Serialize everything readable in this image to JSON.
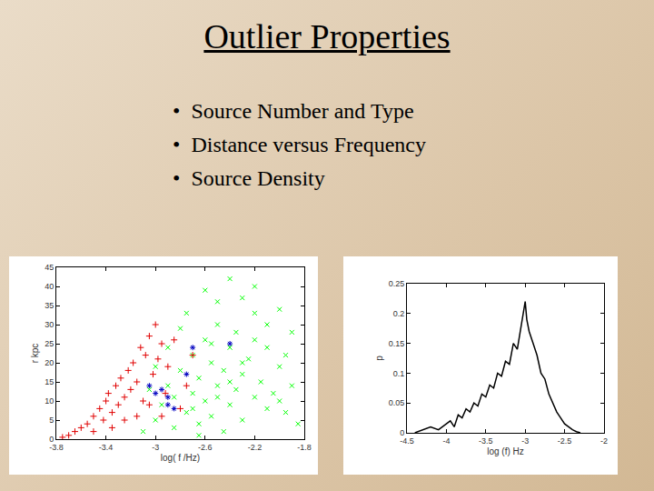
{
  "slide": {
    "title": "Outlier Properties",
    "bullets": [
      "Source Number and Type",
      "Distance versus Frequency",
      "Source Density"
    ]
  },
  "chart_data": [
    {
      "type": "scatter",
      "x_label": "log( f /Hz)",
      "y_label": "r kpc",
      "xlim": [
        -3.8,
        -1.8
      ],
      "xticks": [
        -3.8,
        -3.4,
        -3,
        -2.6,
        -2.2,
        -1.8
      ],
      "ylim": [
        0,
        45
      ],
      "yticks": [
        0,
        5,
        10,
        15,
        20,
        25,
        30,
        35,
        40,
        45
      ],
      "grid": false,
      "series": [
        {
          "color": "#00ff00",
          "marker": "x",
          "x": [
            -3.1,
            -3.0,
            -2.95,
            -2.9,
            -2.85,
            -2.8,
            -2.75,
            -2.7,
            -2.7,
            -2.65,
            -2.65,
            -2.6,
            -2.6,
            -2.55,
            -2.55,
            -2.5,
            -2.5,
            -2.45,
            -2.45,
            -2.4,
            -2.4,
            -2.35,
            -2.35,
            -2.3,
            -2.3,
            -2.25,
            -2.2,
            -2.2,
            -2.15,
            -2.1,
            -2.1,
            -2.05,
            -2.0,
            -1.95,
            -1.9,
            -1.85,
            -2.6,
            -2.4,
            -2.2,
            -2.5,
            -2.0,
            -1.9,
            -2.8,
            -2.9,
            -3.0,
            -3.05,
            -2.75,
            -2.3,
            -2.1,
            -2.65,
            -2.4,
            -2.55,
            -2.7,
            -2.2,
            -2.0,
            -1.95,
            -2.85,
            -2.5,
            -2.3
          ],
          "values": [
            2,
            5,
            9,
            14,
            3,
            18,
            7,
            22,
            12,
            16,
            4,
            26,
            10,
            20,
            6,
            14,
            30,
            18,
            2,
            24,
            9,
            13,
            28,
            17,
            5,
            21,
            11,
            33,
            15,
            8,
            24,
            12,
            19,
            7,
            14,
            4,
            39,
            42,
            40,
            36,
            34,
            28,
            29,
            24,
            19,
            13,
            33,
            37,
            30,
            1,
            15,
            25,
            8,
            26,
            10,
            22,
            11,
            11,
            20
          ]
        },
        {
          "color": "#e00000",
          "marker": "plus",
          "x": [
            -3.75,
            -3.7,
            -3.65,
            -3.6,
            -3.55,
            -3.5,
            -3.5,
            -3.45,
            -3.42,
            -3.4,
            -3.38,
            -3.35,
            -3.32,
            -3.3,
            -3.28,
            -3.25,
            -3.22,
            -3.2,
            -3.18,
            -3.15,
            -3.12,
            -3.1,
            -3.08,
            -3.05,
            -3.02,
            -3.0,
            -2.98,
            -2.95,
            -2.92,
            -2.9,
            -2.85,
            -2.8,
            -2.75,
            -2.7,
            -3.35,
            -3.25,
            -3.15,
            -3.05,
            -2.95
          ],
          "values": [
            0.5,
            1,
            2,
            3,
            4,
            6,
            2,
            8,
            5,
            10,
            12,
            7,
            14,
            9,
            16,
            11,
            18,
            13,
            20,
            15,
            24,
            10,
            22,
            27,
            17,
            30,
            21,
            25,
            12,
            19,
            26,
            8,
            14,
            22,
            3,
            5,
            6,
            9,
            6
          ]
        },
        {
          "color": "#0000c0",
          "marker": "asterisk",
          "x": [
            -3.0,
            -2.95,
            -2.9,
            -2.85,
            -2.75,
            -2.7,
            -2.4,
            -2.9,
            -3.05
          ],
          "values": [
            12,
            13,
            11,
            8,
            17,
            24,
            25,
            9,
            14
          ]
        }
      ]
    },
    {
      "type": "line",
      "x_label": "log (f) Hz",
      "y_label": "p",
      "xlim": [
        -4.5,
        -2
      ],
      "xticks": [
        -4.5,
        -4,
        -3.5,
        -3,
        -2.5,
        -2
      ],
      "ylim": [
        0,
        0.25
      ],
      "yticks": [
        0,
        0.05,
        0.1,
        0.15,
        0.2,
        0.25
      ],
      "grid": false,
      "series": [
        {
          "color": "#000000",
          "x": [
            -4.4,
            -4.3,
            -4.2,
            -4.1,
            -4.0,
            -3.95,
            -3.9,
            -3.85,
            -3.8,
            -3.75,
            -3.7,
            -3.65,
            -3.6,
            -3.55,
            -3.5,
            -3.45,
            -3.4,
            -3.35,
            -3.3,
            -3.25,
            -3.2,
            -3.15,
            -3.1,
            -3.05,
            -3.02,
            -3.0,
            -2.98,
            -2.95,
            -2.9,
            -2.85,
            -2.8,
            -2.75,
            -2.7,
            -2.65,
            -2.6,
            -2.55,
            -2.5,
            -2.45,
            -2.4,
            -2.35,
            -2.3
          ],
          "values": [
            0,
            0.005,
            0.01,
            0.005,
            0.015,
            0.02,
            0.01,
            0.03,
            0.025,
            0.04,
            0.035,
            0.05,
            0.045,
            0.065,
            0.06,
            0.08,
            0.075,
            0.1,
            0.095,
            0.12,
            0.115,
            0.15,
            0.14,
            0.18,
            0.2,
            0.22,
            0.19,
            0.17,
            0.15,
            0.13,
            0.1,
            0.09,
            0.065,
            0.05,
            0.035,
            0.025,
            0.015,
            0.01,
            0.005,
            0.002,
            0
          ]
        }
      ]
    }
  ]
}
